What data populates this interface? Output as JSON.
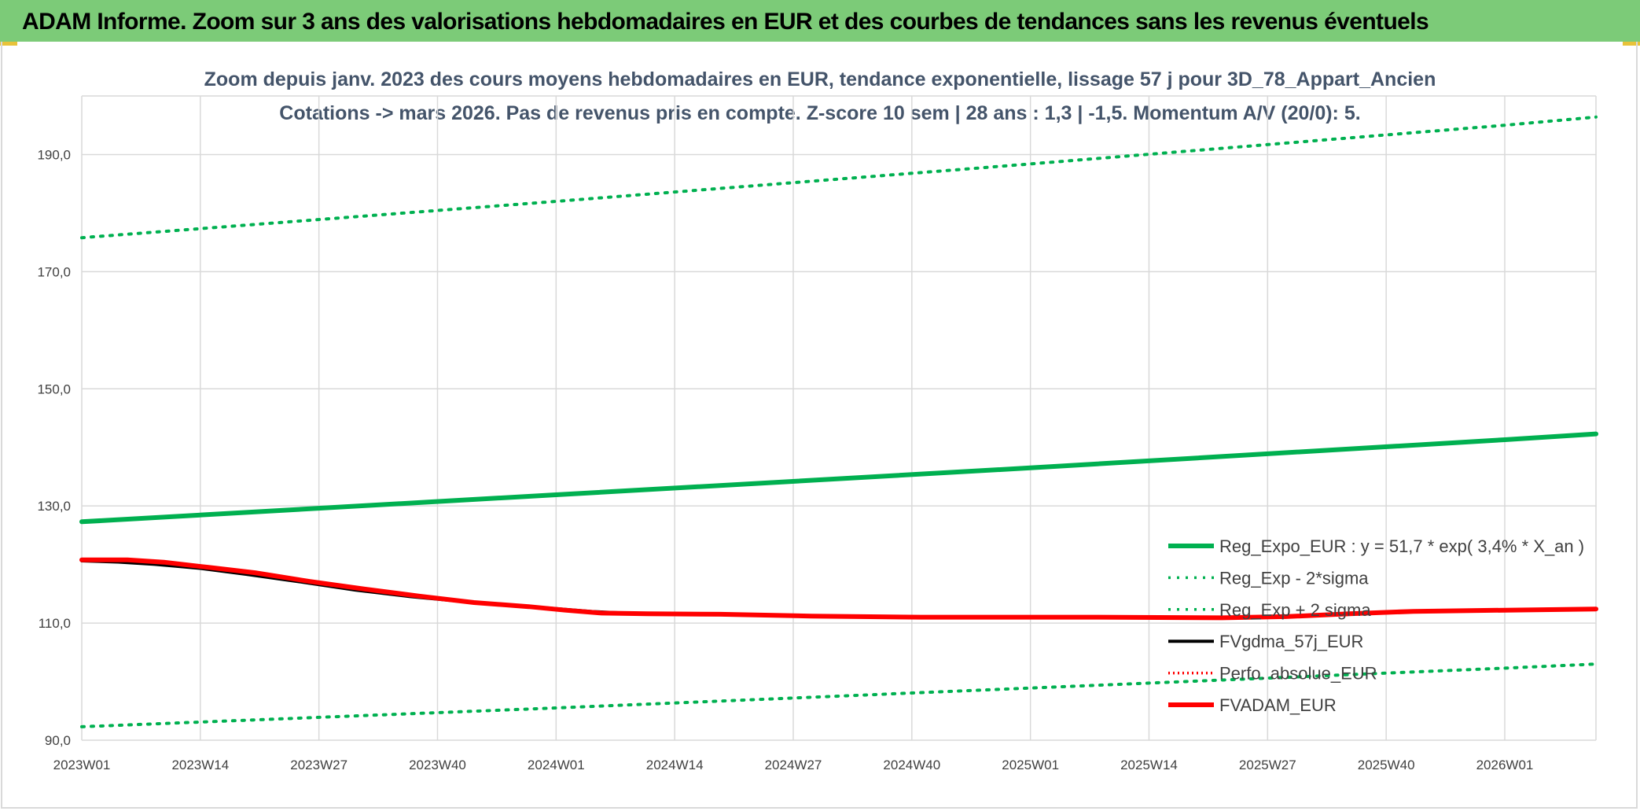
{
  "header": {
    "title": "ADAM Informe. Zoom sur 3 ans des valorisations hebdomadaires en EUR et des courbes de tendances sans les revenus éventuels"
  },
  "chart_data": {
    "type": "line",
    "title": "Zoom depuis janv. 2023 des cours moyens hebdomadaires en EUR, tendance exponentielle, lissage 57 j pour 3D_78_Appart_Ancien",
    "subtitle": "Cotations -> mars 2026. Pas de revenus pris en compte. Z-score 10 sem | 28 ans : 1,3 | -1,5. Momentum A/V (20/0): 5.",
    "ylim": [
      90,
      200
    ],
    "grid": true,
    "legend_position": "bottom-right",
    "y_ticks": [
      "90,0",
      "110,0",
      "130,0",
      "150,0",
      "170,0",
      "190,0"
    ],
    "y_tick_values": [
      90,
      110,
      130,
      150,
      170,
      190
    ],
    "x_ticks": [
      "2023W01",
      "2023W14",
      "2023W27",
      "2023W40",
      "2024W01",
      "2024W14",
      "2024W27",
      "2024W40",
      "2025W01",
      "2025W14",
      "2025W27",
      "2025W40",
      "2026W01"
    ],
    "x_range_weeks": [
      0,
      166
    ],
    "series": [
      {
        "name": "Reg_Expo_EUR : y = 51,7 * exp( 3,4% *  X_an )",
        "color": "#00b050",
        "style": "solid",
        "points": [
          [
            0,
            127.3
          ],
          [
            52,
            131.9
          ],
          [
            104,
            136.5
          ],
          [
            156,
            141.3
          ],
          [
            166,
            142.3
          ]
        ]
      },
      {
        "name": "Reg_Exp - 2*sigma",
        "color": "#00b050",
        "style": "dotted",
        "points": [
          [
            0,
            92.3
          ],
          [
            52,
            95.5
          ],
          [
            104,
            98.9
          ],
          [
            156,
            102.3
          ],
          [
            166,
            103.0
          ]
        ]
      },
      {
        "name": "Reg_Exp + 2 sigma",
        "color": "#00b050",
        "style": "dotted",
        "points": [
          [
            0,
            175.8
          ],
          [
            52,
            182.0
          ],
          [
            104,
            188.4
          ],
          [
            156,
            195.0
          ],
          [
            166,
            196.4
          ]
        ]
      },
      {
        "name": "FVgdma_57j_EUR",
        "color": "#000000",
        "style": "solid",
        "points": [
          [
            0,
            120.6
          ],
          [
            4,
            120.4
          ],
          [
            8,
            120.0
          ],
          [
            13,
            119.3
          ],
          [
            18,
            118.3
          ],
          [
            24,
            117.0
          ],
          [
            30,
            115.6
          ],
          [
            36,
            114.5
          ],
          [
            42,
            113.6
          ],
          [
            48,
            113.0
          ],
          [
            52,
            112.5
          ],
          [
            56,
            112.0
          ],
          [
            60,
            111.7
          ],
          [
            66,
            111.5
          ],
          [
            74,
            111.3
          ],
          [
            85,
            111.1
          ],
          [
            95,
            111.0
          ],
          [
            110,
            111.0
          ],
          [
            125,
            111.0
          ],
          [
            133,
            111.2
          ],
          [
            140,
            111.7
          ],
          [
            148,
            112.0
          ],
          [
            156,
            112.2
          ],
          [
            166,
            112.4
          ]
        ]
      },
      {
        "name": "Perfo. absolue_EUR",
        "color": "#ff0000",
        "style": "dotted",
        "points": []
      },
      {
        "name": "FVADAM_EUR",
        "color": "#ff0000",
        "style": "solid",
        "points": [
          [
            0,
            120.8
          ],
          [
            5,
            120.8
          ],
          [
            9,
            120.4
          ],
          [
            14,
            119.5
          ],
          [
            19,
            118.6
          ],
          [
            25,
            117.1
          ],
          [
            31,
            115.8
          ],
          [
            37,
            114.6
          ],
          [
            43,
            113.5
          ],
          [
            49,
            112.8
          ],
          [
            53,
            112.2
          ],
          [
            57,
            111.7
          ],
          [
            62,
            111.6
          ],
          [
            70,
            111.5
          ],
          [
            80,
            111.2
          ],
          [
            92,
            111.0
          ],
          [
            110,
            111.0
          ],
          [
            125,
            110.9
          ],
          [
            132,
            111.1
          ],
          [
            139,
            111.6
          ],
          [
            146,
            112.0
          ],
          [
            156,
            112.2
          ],
          [
            166,
            112.4
          ]
        ]
      }
    ]
  }
}
